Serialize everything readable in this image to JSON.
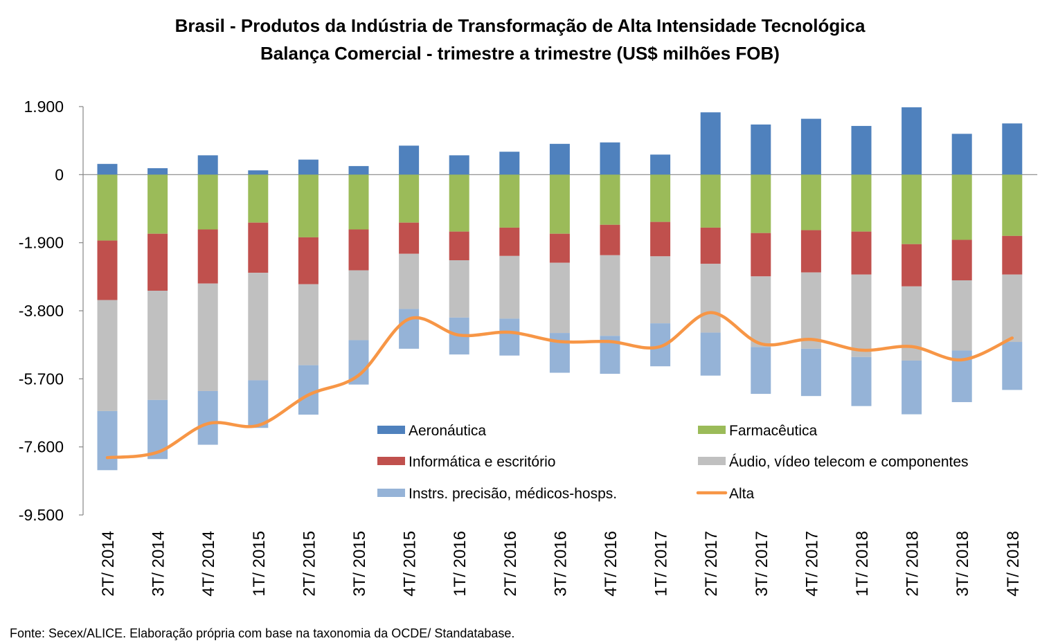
{
  "chart_data": {
    "type": "bar",
    "stacked": true,
    "title": "Brasil - Produtos da Indústria de Transformação de Alta Intensidade Tecnológica",
    "subtitle": "Balança Comercial - trimestre a trimestre (US$ milhões FOB)",
    "xlabel": "",
    "ylabel": "",
    "ylim": [
      -9500,
      1900
    ],
    "yticks": [
      1900,
      0,
      -1900,
      -3800,
      -5700,
      -7600,
      -9500
    ],
    "ytick_labels": [
      "1.900",
      "0",
      "-1.900",
      "-3.800",
      "-5.700",
      "-7.600",
      "-9.500"
    ],
    "grid": false,
    "legend_position": "bottom-right-inside",
    "categories": [
      "2T/ 2014",
      "3T/ 2014",
      "4T/ 2014",
      "1T/ 2015",
      "2T/ 2015",
      "3T/ 2015",
      "4T/ 2015",
      "1T/ 2016",
      "2T/ 2016",
      "3T/ 2016",
      "4T/ 2016",
      "1T/ 2017",
      "2T/ 2017",
      "3T/ 2017",
      "4T/ 2017",
      "1T/ 2018",
      "2T/ 2018",
      "3T/ 2018",
      "4T/ 2018"
    ],
    "series": [
      {
        "name": "Aeronáutica",
        "color": "#4F81BD",
        "kind": "bar",
        "values": [
          300,
          180,
          540,
          120,
          420,
          240,
          810,
          540,
          640,
          860,
          900,
          560,
          1740,
          1400,
          1560,
          1360,
          1880,
          1140,
          1430
        ]
      },
      {
        "name": "Farmacêutica",
        "color": "#9BBB59",
        "kind": "bar",
        "values": [
          -1840,
          -1650,
          -1530,
          -1340,
          -1750,
          -1530,
          -1340,
          -1590,
          -1480,
          -1650,
          -1400,
          -1320,
          -1480,
          -1630,
          -1550,
          -1590,
          -1940,
          -1820,
          -1710
        ]
      },
      {
        "name": "Informática e escritório",
        "color": "#C0504D",
        "kind": "bar",
        "values": [
          -1660,
          -1590,
          -1510,
          -1400,
          -1310,
          -1140,
          -870,
          -800,
          -790,
          -810,
          -850,
          -960,
          -1010,
          -1210,
          -1180,
          -1200,
          -1180,
          -1130,
          -1080
        ]
      },
      {
        "name": "Áudio, vídeo telecom e componentes",
        "color": "#C0C0C0",
        "kind": "bar",
        "values": [
          -3100,
          -3050,
          -3000,
          -3000,
          -2260,
          -1950,
          -1540,
          -1600,
          -1750,
          -1960,
          -2250,
          -1870,
          -1920,
          -1970,
          -2130,
          -2300,
          -2070,
          -1960,
          -1880
        ]
      },
      {
        "name": "Instrs. precisão, médicos-hosps.",
        "color": "#95B3D7",
        "kind": "bar",
        "values": [
          -1650,
          -1650,
          -1500,
          -1330,
          -1380,
          -1240,
          -1110,
          -1030,
          -1030,
          -1110,
          -1060,
          -1200,
          -1200,
          -1310,
          -1320,
          -1370,
          -1500,
          -1440,
          -1340
        ]
      },
      {
        "name": "Alta",
        "color": "#F79646",
        "kind": "line",
        "values": [
          -7900,
          -7750,
          -6950,
          -7000,
          -6150,
          -5600,
          -4030,
          -4480,
          -4400,
          -4660,
          -4660,
          -4800,
          -3850,
          -4720,
          -4600,
          -4900,
          -4800,
          -5170,
          -4560
        ]
      }
    ]
  },
  "source_note": "Fonte: Secex/ALICE. Elaboração própria com base na taxonomia da OCDE/ Standatabase."
}
